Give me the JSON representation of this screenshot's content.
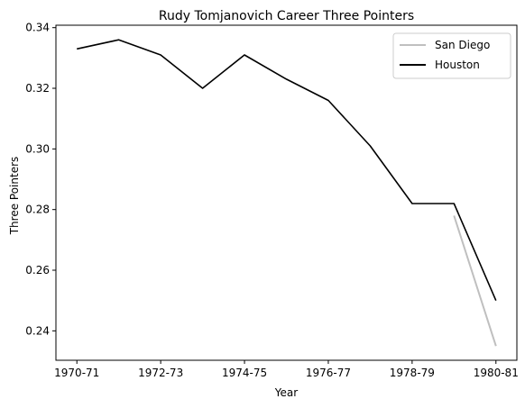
{
  "chart_data": {
    "type": "line",
    "title": "Rudy Tomjanovich Career Three Pointers",
    "xlabel": "Year",
    "ylabel": "Three Pointers",
    "x": [
      "1970-71",
      "1971-72",
      "1972-73",
      "1973-74",
      "1974-75",
      "1975-76",
      "1976-77",
      "1977-78",
      "1978-79",
      "1979-80",
      "1980-81"
    ],
    "x_tick_labels": [
      "1970-71",
      "1972-73",
      "1974-75",
      "1976-77",
      "1978-79",
      "1980-81"
    ],
    "ylim": [
      0.2303,
      0.3408
    ],
    "y_ticks": [
      0.24,
      0.26,
      0.28,
      0.3,
      0.32,
      0.34
    ],
    "y_tick_labels": [
      "0.24",
      "0.26",
      "0.28",
      "0.30",
      "0.32",
      "0.34"
    ],
    "grid": false,
    "legend_position": "top-right",
    "series": [
      {
        "name": "San Diego",
        "color": "#bfbfbf",
        "values": [
          null,
          null,
          null,
          null,
          null,
          null,
          null,
          null,
          null,
          0.278,
          0.235
        ]
      },
      {
        "name": "Houston",
        "color": "#000000",
        "values": [
          0.333,
          0.336,
          0.331,
          0.32,
          0.331,
          0.323,
          0.316,
          0.301,
          0.282,
          0.282,
          0.25
        ]
      }
    ]
  }
}
